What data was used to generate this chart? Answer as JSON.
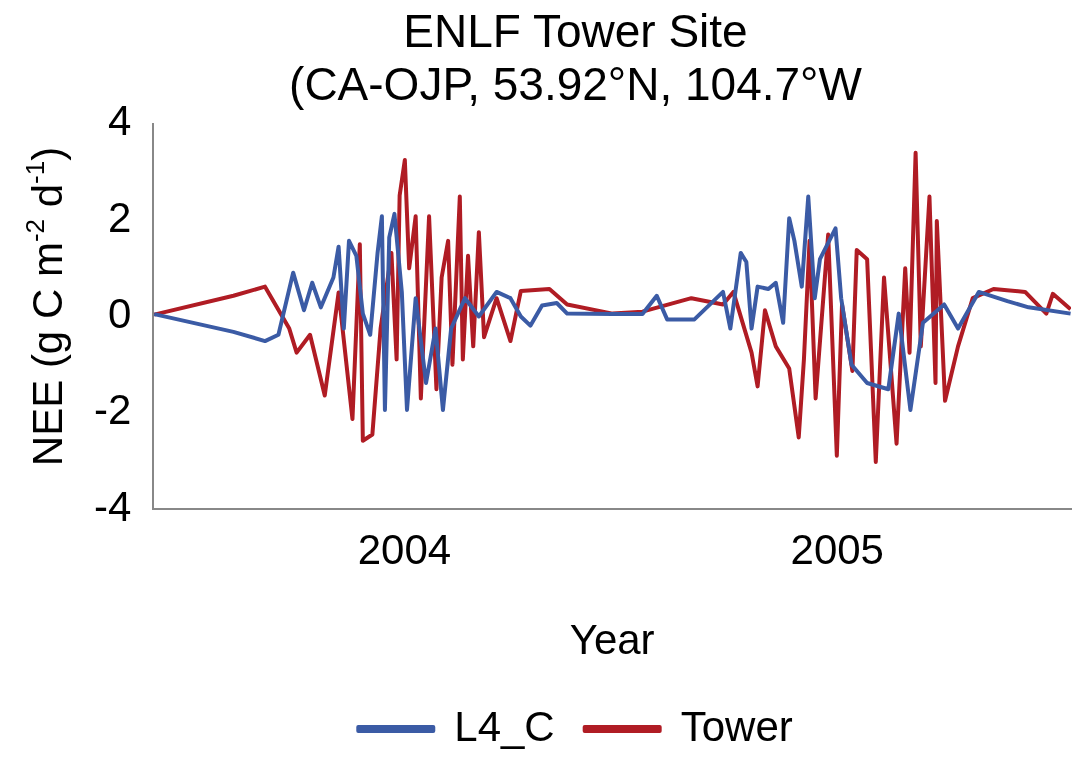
{
  "chart_data": {
    "type": "line",
    "title": "ENLF Tower Site\n(CA-OJP, 53.92°N, 104.7°W",
    "xlabel": "Year",
    "ylabel": "NEE (g C m$^{-2}$ d$^{-1}$)",
    "xlim": [
      2003.92,
      2006.04
    ],
    "xticks": [
      {
        "value": 2004.5,
        "label": "2004"
      },
      {
        "value": 2005.5,
        "label": "2005"
      }
    ],
    "ylim": [
      -4,
      4
    ],
    "yticks": [
      -4,
      -2,
      0,
      2,
      4
    ],
    "grid": false,
    "legend": "bottom",
    "marker": "none",
    "line_style": "solid",
    "series": [
      {
        "name": "L4_C",
        "color": "#3b5ba5",
        "x": [
          2003.922,
          2004.105,
          2004.178,
          2004.209,
          2004.243,
          2004.268,
          2004.287,
          2004.307,
          2004.336,
          2004.348,
          2004.36,
          2004.372,
          2004.389,
          2004.404,
          2004.421,
          2004.438,
          2004.448,
          2004.455,
          2004.465,
          2004.477,
          2004.494,
          2004.506,
          2004.526,
          2004.55,
          2004.572,
          2004.589,
          2004.608,
          2004.64,
          2004.672,
          2004.713,
          2004.745,
          2004.769,
          2004.791,
          2004.818,
          2004.852,
          2004.876,
          2004.981,
          2005.05,
          2005.083,
          2005.107,
          2005.17,
          2005.236,
          2005.253,
          2005.277,
          2005.29,
          2005.302,
          2005.316,
          2005.341,
          2005.358,
          2005.375,
          2005.389,
          2005.401,
          2005.418,
          2005.433,
          2005.448,
          2005.46,
          2005.496,
          2005.509,
          2005.533,
          2005.569,
          2005.618,
          2005.642,
          2005.669,
          2005.698,
          2005.747,
          2005.779,
          2005.827,
          2005.893,
          2005.942,
          2006.039
        ],
        "values": [
          0.05,
          -0.32,
          -0.51,
          -0.38,
          0.91,
          0.13,
          0.7,
          0.19,
          0.81,
          1.45,
          -0.25,
          1.57,
          1.26,
          0.06,
          -0.38,
          1.32,
          2.08,
          -1.94,
          1.64,
          2.13,
          0.51,
          -1.94,
          0.38,
          -1.38,
          -0.25,
          -1.94,
          -0.25,
          0.38,
          0,
          0.51,
          0.38,
          0,
          -0.19,
          0.23,
          0.28,
          0.06,
          0.05,
          0.05,
          0.43,
          -0.06,
          -0.06,
          0.51,
          -0.25,
          1.32,
          1.13,
          -0.25,
          0.62,
          0.57,
          0.7,
          -0.13,
          2.04,
          1.57,
          0.62,
          2.49,
          0.38,
          1.19,
          1.83,
          0.38,
          -1.0,
          -1.38,
          -1.51,
          0.06,
          -1.94,
          -0.13,
          0.25,
          -0.25,
          0.51,
          0.32,
          0.19,
          0.06
        ]
      },
      {
        "name": "Tower",
        "color": "#b01c24",
        "x": [
          2003.922,
          2004.105,
          2004.178,
          2004.234,
          2004.251,
          2004.282,
          2004.316,
          2004.348,
          2004.38,
          2004.397,
          2004.404,
          2004.426,
          2004.445,
          2004.47,
          2004.482,
          2004.489,
          2004.501,
          2004.511,
          2004.526,
          2004.538,
          2004.557,
          2004.574,
          2004.586,
          2004.601,
          2004.611,
          2004.628,
          2004.635,
          2004.647,
          2004.659,
          2004.672,
          2004.684,
          2004.713,
          2004.745,
          2004.769,
          2004.835,
          2004.876,
          2004.981,
          2005.05,
          2005.163,
          2005.236,
          2005.26,
          2005.302,
          2005.316,
          2005.333,
          2005.358,
          2005.389,
          2005.411,
          2005.423,
          2005.436,
          2005.45,
          2005.479,
          2005.499,
          2005.511,
          2005.535,
          2005.545,
          2005.569,
          2005.589,
          2005.608,
          2005.637,
          2005.657,
          2005.667,
          2005.681,
          2005.693,
          2005.713,
          2005.727,
          2005.73,
          2005.749,
          2005.779,
          2005.813,
          2005.861,
          2005.934,
          2005.983,
          2005.998,
          2006.039
        ],
        "values": [
          0.04,
          0.43,
          0.62,
          -0.25,
          -0.75,
          -0.38,
          -1.64,
          0.5,
          -2.13,
          1.5,
          -2.58,
          -2.45,
          -0.25,
          1.32,
          -0.89,
          2.51,
          3.25,
          1.0,
          2.08,
          -1.7,
          2.08,
          -1.51,
          0.81,
          1.57,
          -1.0,
          2.49,
          -0.89,
          1.26,
          -0.62,
          1.75,
          -0.43,
          0.38,
          -0.51,
          0.53,
          0.57,
          0.25,
          0.06,
          0.1,
          0.38,
          0.25,
          0.51,
          -0.75,
          -1.45,
          0.13,
          -0.62,
          -1.08,
          -2.51,
          -0.89,
          1.57,
          -1.7,
          1.7,
          -2.89,
          0.25,
          -1.13,
          1.38,
          1.19,
          -3.02,
          0.81,
          -2.64,
          1.0,
          -0.75,
          3.4,
          -0.62,
          2.49,
          -1.38,
          1.98,
          -1.75,
          -0.62,
          0.38,
          0.57,
          0.51,
          0.06,
          0.47,
          0.15
        ]
      }
    ]
  }
}
